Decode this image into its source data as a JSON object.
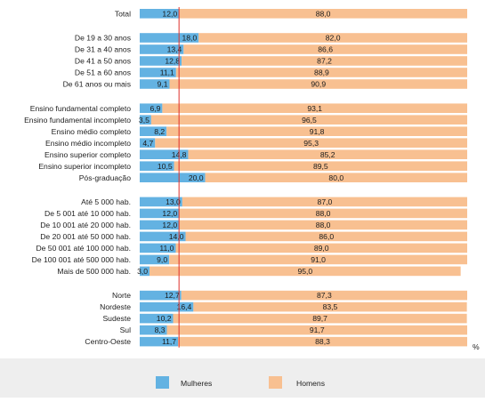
{
  "chart_data": {
    "type": "bar",
    "stacked": true,
    "orientation": "horizontal",
    "unit_label": "%",
    "xlim": [
      0,
      100
    ],
    "reference_line_at": 12.0,
    "series": [
      {
        "name": "Mulheres",
        "color": "#63b2e2"
      },
      {
        "name": "Homens",
        "color": "#f8c091"
      }
    ],
    "groups": [
      {
        "rows": [
          {
            "label": "Total",
            "mulheres": 12.0,
            "homens": 88.0,
            "mulheres_text": "12,0",
            "homens_text": "88,0"
          }
        ]
      },
      {
        "rows": [
          {
            "label": "De 19 a 30 anos",
            "mulheres": 18.0,
            "homens": 82.0,
            "mulheres_text": "18,0",
            "homens_text": "82,0"
          },
          {
            "label": "De 31 a 40 anos",
            "mulheres": 13.4,
            "homens": 86.6,
            "mulheres_text": "13,4",
            "homens_text": "86,6"
          },
          {
            "label": "De 41 a 50 anos",
            "mulheres": 12.8,
            "homens": 87.2,
            "mulheres_text": "12,8",
            "homens_text": "87,2"
          },
          {
            "label": "De 51 a 60 anos",
            "mulheres": 11.1,
            "homens": 88.9,
            "mulheres_text": "11,1",
            "homens_text": "88,9"
          },
          {
            "label": "De 61 anos ou mais",
            "mulheres": 9.1,
            "homens": 90.9,
            "mulheres_text": "9,1",
            "homens_text": "90,9"
          }
        ]
      },
      {
        "rows": [
          {
            "label": "Ensino fundamental completo",
            "mulheres": 6.9,
            "homens": 93.1,
            "mulheres_text": "6,9",
            "homens_text": "93,1"
          },
          {
            "label": "Ensino fundamental incompleto",
            "mulheres": 3.5,
            "homens": 96.5,
            "mulheres_text": "3,5",
            "homens_text": "96,5"
          },
          {
            "label": "Ensino médio completo",
            "mulheres": 8.2,
            "homens": 91.8,
            "mulheres_text": "8,2",
            "homens_text": "91,8"
          },
          {
            "label": "Ensino médio incompleto",
            "mulheres": 4.7,
            "homens": 95.3,
            "mulheres_text": "4,7",
            "homens_text": "95,3"
          },
          {
            "label": "Ensino superior completo",
            "mulheres": 14.8,
            "homens": 85.2,
            "mulheres_text": "14,8",
            "homens_text": "85,2"
          },
          {
            "label": "Ensino superior incompleto",
            "mulheres": 10.5,
            "homens": 89.5,
            "mulheres_text": "10,5",
            "homens_text": "89,5"
          },
          {
            "label": "Pós-graduação",
            "mulheres": 20.0,
            "homens": 80.0,
            "mulheres_text": "20,0",
            "homens_text": "80,0"
          }
        ]
      },
      {
        "rows": [
          {
            "label": "Até 5 000 hab.",
            "mulheres": 13.0,
            "homens": 87.0,
            "mulheres_text": "13,0",
            "homens_text": "87,0"
          },
          {
            "label": "De 5 001 até 10 000 hab.",
            "mulheres": 12.0,
            "homens": 88.0,
            "mulheres_text": "12,0",
            "homens_text": "88,0"
          },
          {
            "label": "De 10 001 até 20 000 hab.",
            "mulheres": 12.0,
            "homens": 88.0,
            "mulheres_text": "12,0",
            "homens_text": "88,0"
          },
          {
            "label": "De 20 001 até 50 000 hab.",
            "mulheres": 14.0,
            "homens": 86.0,
            "mulheres_text": "14,0",
            "homens_text": "86,0"
          },
          {
            "label": "De 50 001 até 100 000 hab.",
            "mulheres": 11.0,
            "homens": 89.0,
            "mulheres_text": "11,0",
            "homens_text": "89,0"
          },
          {
            "label": "De 100 001 até 500 000 hab.",
            "mulheres": 9.0,
            "homens": 91.0,
            "mulheres_text": "9,0",
            "homens_text": "91,0"
          },
          {
            "label": "Mais de 500 000 hab.",
            "mulheres": 3.0,
            "homens": 95.0,
            "mulheres_text": "3,0",
            "homens_text": "95,0"
          }
        ]
      },
      {
        "rows": [
          {
            "label": "Norte",
            "mulheres": 12.7,
            "homens": 87.3,
            "mulheres_text": "12,7",
            "homens_text": "87,3"
          },
          {
            "label": "Nordeste",
            "mulheres": 16.4,
            "homens": 83.5,
            "mulheres_text": "16,4",
            "homens_text": "83,5"
          },
          {
            "label": "Sudeste",
            "mulheres": 10.2,
            "homens": 89.7,
            "mulheres_text": "10,2",
            "homens_text": "89,7"
          },
          {
            "label": "Sul",
            "mulheres": 8.3,
            "homens": 91.7,
            "mulheres_text": "8,3",
            "homens_text": "91,7"
          },
          {
            "label": "Centro-Oeste",
            "mulheres": 11.7,
            "homens": 88.3,
            "mulheres_text": "11,7",
            "homens_text": "88,3"
          }
        ]
      }
    ],
    "legend": {
      "placement": "bottom-center"
    }
  }
}
